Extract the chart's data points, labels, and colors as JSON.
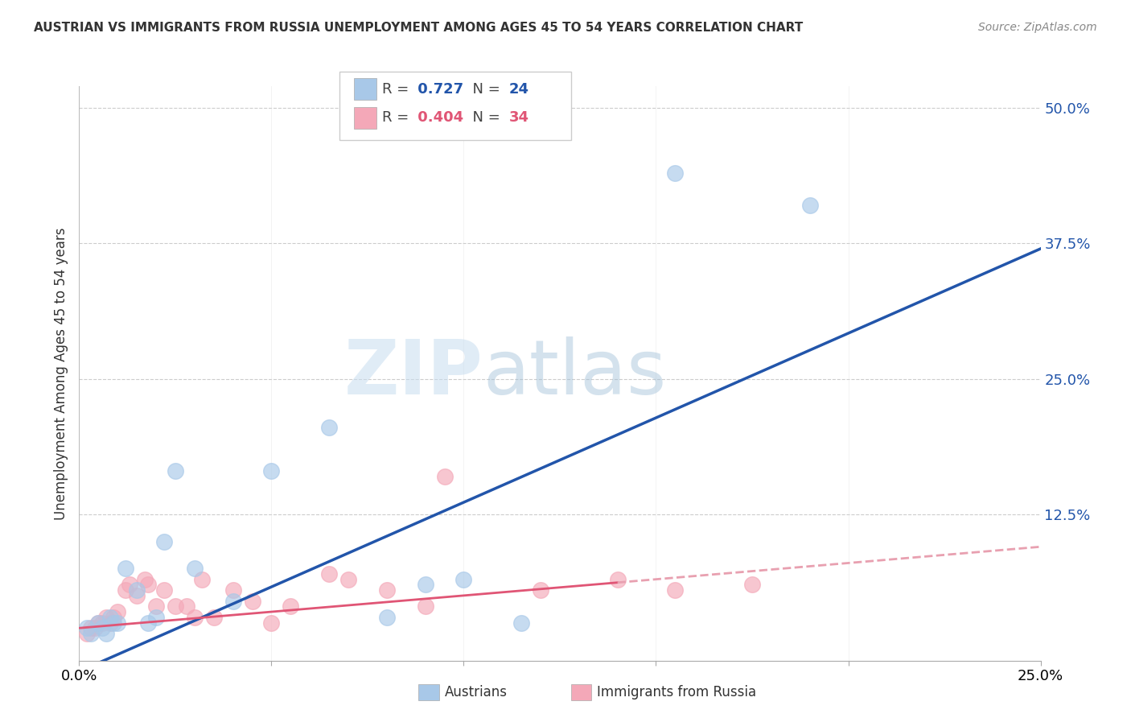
{
  "title": "AUSTRIAN VS IMMIGRANTS FROM RUSSIA UNEMPLOYMENT AMONG AGES 45 TO 54 YEARS CORRELATION CHART",
  "source": "Source: ZipAtlas.com",
  "ylabel": "Unemployment Among Ages 45 to 54 years",
  "r_blue": 0.727,
  "n_blue": 24,
  "r_pink": 0.404,
  "n_pink": 34,
  "blue_color": "#a8c8e8",
  "pink_color": "#f4a8b8",
  "blue_line_color": "#2255aa",
  "pink_line_color": "#e05575",
  "pink_line_dash_color": "#e8a0b0",
  "xmin": 0.0,
  "xmax": 0.25,
  "ymin": -0.01,
  "ymax": 0.52,
  "xtick_labels": [
    "0.0%",
    "25.0%"
  ],
  "ytick_positions": [
    0.125,
    0.25,
    0.375,
    0.5
  ],
  "ytick_labels": [
    "12.5%",
    "25.0%",
    "37.5%",
    "50.0%"
  ],
  "blue_scatter_x": [
    0.002,
    0.003,
    0.005,
    0.006,
    0.007,
    0.008,
    0.009,
    0.01,
    0.012,
    0.015,
    0.018,
    0.02,
    0.022,
    0.025,
    0.03,
    0.04,
    0.05,
    0.065,
    0.08,
    0.09,
    0.1,
    0.115,
    0.155,
    0.19
  ],
  "blue_scatter_y": [
    0.02,
    0.015,
    0.025,
    0.02,
    0.015,
    0.03,
    0.025,
    0.025,
    0.075,
    0.055,
    0.025,
    0.03,
    0.1,
    0.165,
    0.075,
    0.045,
    0.165,
    0.205,
    0.03,
    0.06,
    0.065,
    0.025,
    0.44,
    0.41
  ],
  "pink_scatter_x": [
    0.002,
    0.003,
    0.004,
    0.005,
    0.006,
    0.007,
    0.008,
    0.009,
    0.01,
    0.012,
    0.013,
    0.015,
    0.017,
    0.018,
    0.02,
    0.022,
    0.025,
    0.028,
    0.03,
    0.032,
    0.035,
    0.04,
    0.045,
    0.05,
    0.055,
    0.065,
    0.07,
    0.08,
    0.09,
    0.095,
    0.12,
    0.14,
    0.155,
    0.175
  ],
  "pink_scatter_y": [
    0.015,
    0.02,
    0.02,
    0.025,
    0.025,
    0.03,
    0.025,
    0.03,
    0.035,
    0.055,
    0.06,
    0.05,
    0.065,
    0.06,
    0.04,
    0.055,
    0.04,
    0.04,
    0.03,
    0.065,
    0.03,
    0.055,
    0.045,
    0.025,
    0.04,
    0.07,
    0.065,
    0.055,
    0.04,
    0.16,
    0.055,
    0.065,
    0.055,
    0.06
  ],
  "watermark_zip": "ZIP",
  "watermark_atlas": "atlas",
  "background_color": "#ffffff",
  "grid_color": "#cccccc",
  "blue_line_intercept": -0.02,
  "blue_line_slope": 1.56,
  "pink_line_intercept": 0.02,
  "pink_line_slope": 0.3
}
